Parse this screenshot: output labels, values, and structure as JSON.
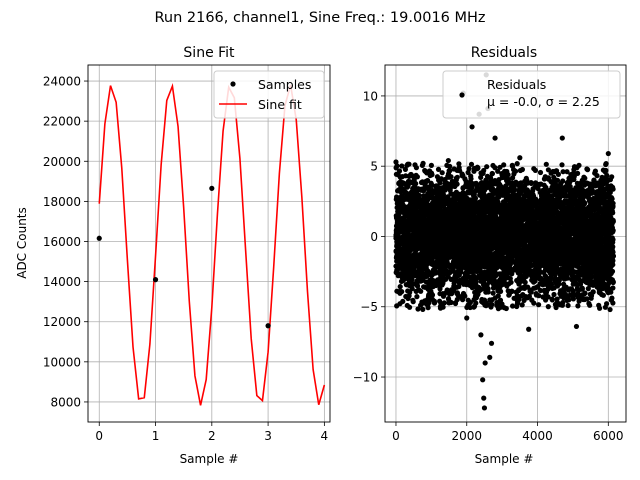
{
  "suptitle": "Run 2166, channel1, Sine Freq.: 19.0016 MHz",
  "chart_data": [
    {
      "type": "line",
      "title": "Sine Fit",
      "xlabel": "Sample #",
      "ylabel": "ADC Counts",
      "xlim": [
        -0.2,
        4.1
      ],
      "ylim": [
        7000,
        24800
      ],
      "xticks": [
        0,
        1,
        2,
        3,
        4
      ],
      "xtick_labels": [
        "0",
        "1",
        "2",
        "3",
        "4"
      ],
      "yticks": [
        8000,
        10000,
        12000,
        14000,
        16000,
        18000,
        20000,
        22000,
        24000
      ],
      "ytick_labels": [
        "8000",
        "10000",
        "12000",
        "14000",
        "16000",
        "18000",
        "20000",
        "22000",
        "24000"
      ],
      "grid": true,
      "legend": {
        "location": "top-right",
        "entries": [
          "Samples",
          "Sine fit"
        ]
      },
      "fit": {
        "amplitude": 8000,
        "offset": 15830,
        "cycles_per_sample": 0.9474,
        "phase": 0.0414,
        "sample_start": 0,
        "sample_stop": 4,
        "sample_step": 0.1
      },
      "series": [
        {
          "name": "Samples",
          "style": "points",
          "color": "#000000",
          "x": [
            0,
            1,
            2,
            3
          ],
          "y": [
            16160,
            14100,
            18650,
            11800
          ]
        },
        {
          "name": "Sine fit",
          "style": "line",
          "color": "#ff0000"
        }
      ]
    },
    {
      "type": "scatter",
      "title": "Residuals",
      "xlabel": "Sample #",
      "ylabel": "",
      "xlim": [
        -310,
        6500
      ],
      "ylim": [
        -13.2,
        12.2
      ],
      "xticks": [
        0,
        2000,
        4000,
        6000
      ],
      "xtick_labels": [
        "0",
        "2000",
        "4000",
        "6000"
      ],
      "yticks": [
        -10,
        -5,
        0,
        5,
        10
      ],
      "ytick_labels": [
        "−10",
        "−5",
        "0",
        "5",
        "10"
      ],
      "grid": true,
      "legend": {
        "location": "top-right",
        "entries": [
          "Residuals",
          "μ = -0.0, σ = 2.25"
        ]
      },
      "band": {
        "n_points": 6144,
        "mean": 0.0,
        "sigma": 2.25,
        "seed": 2166
      },
      "series": [
        {
          "name": "Residuals",
          "color": "#000000",
          "x": [
            0,
            60,
            1480,
            1900,
            2000,
            2150,
            2350,
            2400,
            2450,
            2480,
            2500,
            2520,
            2550,
            2600,
            2650,
            2700,
            2800,
            3500,
            3750,
            4700,
            5100,
            6000,
            6050
          ],
          "y": [
            5.3,
            4.4,
            5.4,
            10.2,
            -5.8,
            7.8,
            8.7,
            -7.0,
            -10.2,
            -11.5,
            -12.2,
            -9.0,
            11.5,
            9.1,
            -8.6,
            -7.6,
            7.0,
            5.6,
            -6.6,
            7.0,
            -6.4,
            5.9,
            -5.2
          ]
        }
      ]
    }
  ]
}
